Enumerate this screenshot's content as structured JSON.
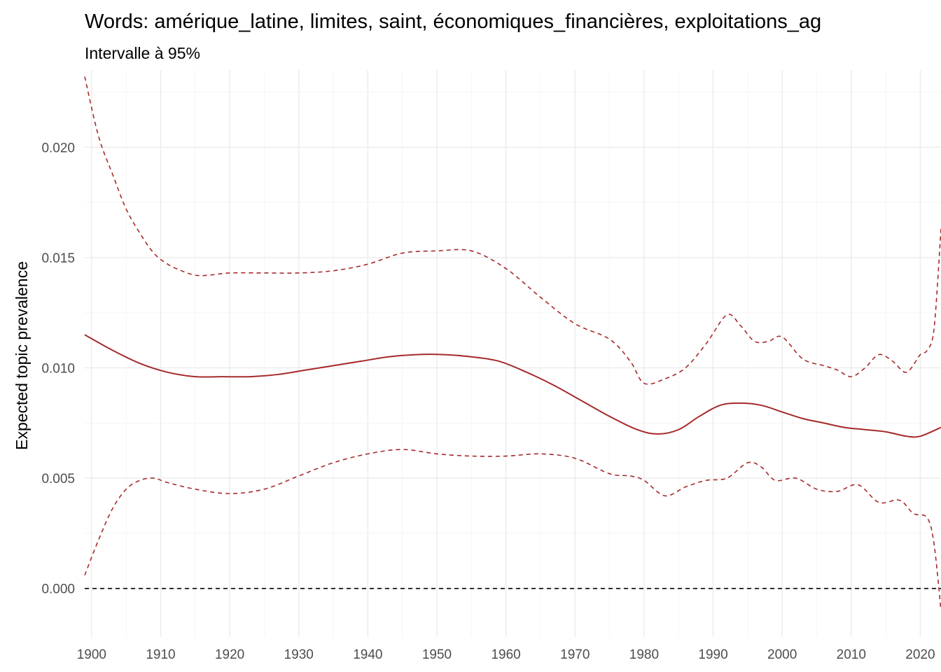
{
  "chart_data": {
    "type": "line",
    "title": "Words: amérique_latine, limites, saint, économiques_financières, exploitations_ag",
    "subtitle": "Intervalle à 95%",
    "xlabel": "",
    "ylabel": "Expected topic prevalence",
    "xlim": [
      1899,
      2023
    ],
    "ylim": [
      -0.0022,
      0.0235
    ],
    "x_ticks": [
      1900,
      1910,
      1920,
      1930,
      1940,
      1950,
      1960,
      1970,
      1980,
      1990,
      2000,
      2010,
      2020
    ],
    "x_tick_labels": [
      "1900",
      "1910",
      "1920",
      "1930",
      "1940",
      "1950",
      "1960",
      "1970",
      "1980",
      "1990",
      "2000",
      "2010",
      "2020"
    ],
    "y_ticks": [
      0.0,
      0.005,
      0.01,
      0.015,
      0.02
    ],
    "y_tick_labels": [
      "0.000",
      "0.005",
      "0.010",
      "0.015",
      "0.020"
    ],
    "grid": true,
    "reference_line": {
      "y": 0,
      "style": "dashed",
      "color": "#000000"
    },
    "series": [
      {
        "role": "estimate",
        "style": "solid",
        "color": "#a52a2a",
        "x": [
          1899,
          1903,
          1907,
          1911,
          1915,
          1919,
          1923,
          1927,
          1931,
          1935,
          1939,
          1943,
          1947,
          1951,
          1955,
          1959,
          1963,
          1967,
          1971,
          1975,
          1979,
          1982,
          1985,
          1988,
          1991,
          1994,
          1997,
          2000,
          2003,
          2006,
          2009,
          2012,
          2015,
          2018,
          2020,
          2023
        ],
        "y": [
          0.0115,
          0.0108,
          0.0102,
          0.0098,
          0.0096,
          0.0096,
          0.0096,
          0.0097,
          0.0099,
          0.0101,
          0.0103,
          0.0105,
          0.0106,
          0.0106,
          0.0105,
          0.0103,
          0.0098,
          0.0092,
          0.0085,
          0.0078,
          0.0072,
          0.007,
          0.0072,
          0.0078,
          0.0083,
          0.0084,
          0.0083,
          0.008,
          0.0077,
          0.0075,
          0.0073,
          0.0072,
          0.0071,
          0.0069,
          0.0069,
          0.0073
        ]
      },
      {
        "role": "upper",
        "style": "dashed",
        "color": "#a52a2a",
        "x": [
          1899,
          1901,
          1903,
          1905,
          1907,
          1909,
          1911,
          1913,
          1915,
          1917,
          1920,
          1925,
          1930,
          1935,
          1940,
          1945,
          1950,
          1955,
          1960,
          1965,
          1970,
          1975,
          1978,
          1980,
          1983,
          1986,
          1989,
          1992,
          1994,
          1996,
          1998,
          2000,
          2003,
          2006,
          2008,
          2010,
          2012,
          2014,
          2016,
          2018,
          2020,
          2021,
          2022,
          2023
        ],
        "y": [
          0.0232,
          0.0205,
          0.0188,
          0.0172,
          0.0161,
          0.0152,
          0.0147,
          0.0144,
          0.0142,
          0.0142,
          0.0143,
          0.0143,
          0.0143,
          0.0144,
          0.0147,
          0.0152,
          0.0153,
          0.0153,
          0.0145,
          0.0132,
          0.012,
          0.0113,
          0.0103,
          0.0093,
          0.0095,
          0.01,
          0.0111,
          0.0124,
          0.0119,
          0.0112,
          0.0112,
          0.0114,
          0.0104,
          0.0101,
          0.0099,
          0.0096,
          0.01,
          0.0106,
          0.0103,
          0.0098,
          0.0106,
          0.0108,
          0.0118,
          0.0163
        ]
      },
      {
        "role": "lower",
        "style": "dashed",
        "color": "#a52a2a",
        "x": [
          1899,
          1901,
          1903,
          1905,
          1907,
          1909,
          1911,
          1915,
          1920,
          1925,
          1930,
          1935,
          1940,
          1945,
          1950,
          1955,
          1960,
          1965,
          1970,
          1975,
          1978,
          1980,
          1983,
          1986,
          1989,
          1992,
          1995,
          1997,
          1999,
          2002,
          2005,
          2008,
          2011,
          2014,
          2017,
          2019,
          2021,
          2022,
          2023
        ],
        "y": [
          0.0006,
          0.0022,
          0.0036,
          0.0045,
          0.0049,
          0.005,
          0.0048,
          0.0045,
          0.0043,
          0.0045,
          0.0051,
          0.0057,
          0.0061,
          0.0063,
          0.0061,
          0.006,
          0.006,
          0.0061,
          0.0059,
          0.0052,
          0.0051,
          0.0049,
          0.0042,
          0.0046,
          0.0049,
          0.005,
          0.0057,
          0.0055,
          0.0049,
          0.005,
          0.0045,
          0.0044,
          0.0047,
          0.0039,
          0.004,
          0.0034,
          0.0032,
          0.002,
          -0.001
        ]
      }
    ]
  }
}
